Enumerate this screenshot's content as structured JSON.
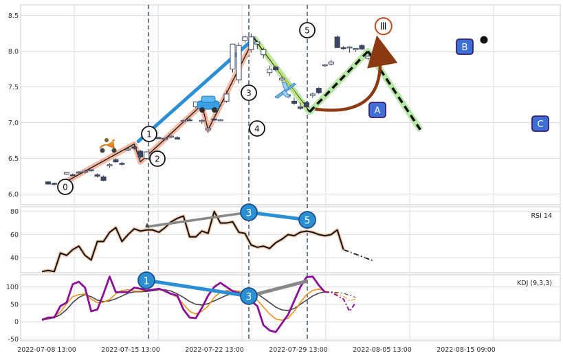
{
  "chart_data": [
    {
      "type": "candlestick",
      "panel": "price",
      "ylim": [
        5.85,
        8.65
      ],
      "y_ticks": [
        6.0,
        6.5,
        7.0,
        7.5,
        8.0,
        8.5
      ],
      "x_tick_labels": [
        "2022-07-08 13:00",
        "2022-07-15 13:00",
        "2022-07-22 13:00",
        "2022-07-29 13:00",
        "2022-08-05 13:00",
        "2022-08-15 09:00"
      ],
      "grid": true,
      "candles_ohlc": [
        [
          6.17,
          6.18,
          6.13,
          6.14
        ],
        [
          6.15,
          6.16,
          6.12,
          6.14
        ],
        [
          6.14,
          6.16,
          6.11,
          6.12
        ],
        [
          6.28,
          6.31,
          6.27,
          6.3
        ],
        [
          6.27,
          6.29,
          6.25,
          6.26
        ],
        [
          6.3,
          6.32,
          6.28,
          6.31
        ],
        [
          6.31,
          6.34,
          6.29,
          6.32
        ],
        [
          6.33,
          6.35,
          6.31,
          6.34
        ],
        [
          6.27,
          6.29,
          6.23,
          6.25
        ],
        [
          6.24,
          6.26,
          6.18,
          6.19
        ],
        [
          6.4,
          6.43,
          6.37,
          6.41
        ],
        [
          6.48,
          6.5,
          6.44,
          6.45
        ],
        [
          6.43,
          6.45,
          6.4,
          6.42
        ],
        [
          6.62,
          6.65,
          6.6,
          6.63
        ],
        [
          6.66,
          6.7,
          6.62,
          6.64
        ],
        [
          6.6,
          6.62,
          6.5,
          6.52
        ],
        [
          6.5,
          6.6,
          6.48,
          6.59
        ],
        [
          6.79,
          6.81,
          6.77,
          6.8
        ],
        [
          6.79,
          6.8,
          6.77,
          6.78
        ],
        [
          6.77,
          6.79,
          6.75,
          6.78
        ],
        [
          6.8,
          6.82,
          6.78,
          6.81
        ],
        [
          6.79,
          6.81,
          6.76,
          6.77
        ],
        [
          7.02,
          7.04,
          7.0,
          7.03
        ],
        [
          7.04,
          7.06,
          7.02,
          7.03
        ],
        [
          7.22,
          7.3,
          7.2,
          7.29
        ],
        [
          7.02,
          7.05,
          6.98,
          7.03
        ],
        [
          6.9,
          6.93,
          6.86,
          6.92
        ],
        [
          7.05,
          7.07,
          7.03,
          7.04
        ],
        [
          7.03,
          7.05,
          7.02,
          7.04
        ],
        [
          7.3,
          7.45,
          7.28,
          7.4
        ],
        [
          7.75,
          8.1,
          7.7,
          8.1
        ],
        [
          7.6,
          8.12,
          7.55,
          8.08
        ],
        [
          8.15,
          8.22,
          8.12,
          8.2
        ],
        [
          8.02,
          8.25,
          7.98,
          8.2
        ],
        [
          8.1,
          8.15,
          8.03,
          8.13
        ],
        [
          7.95,
          8.05,
          7.9,
          8.02
        ],
        [
          7.7,
          7.8,
          7.65,
          7.75
        ],
        [
          7.78,
          7.8,
          7.72,
          7.74
        ],
        [
          7.6,
          7.65,
          7.58,
          7.62
        ],
        [
          7.38,
          7.4,
          7.35,
          7.39
        ],
        [
          7.3,
          7.35,
          7.25,
          7.27
        ],
        [
          7.22,
          7.28,
          7.18,
          7.2
        ],
        [
          7.28,
          7.3,
          7.2,
          7.22
        ],
        [
          7.38,
          7.42,
          7.35,
          7.4
        ],
        [
          7.48,
          7.5,
          7.4,
          7.42
        ],
        [
          7.8,
          7.82,
          7.78,
          7.81
        ],
        [
          7.82,
          7.88,
          7.8,
          7.85
        ],
        [
          8.2,
          8.22,
          8.05,
          8.05
        ],
        [
          8.05,
          8.07,
          8.02,
          8.04
        ],
        [
          8.05,
          8.07,
          7.98,
          8.06
        ],
        [
          8.02,
          8.04,
          7.99,
          8.04
        ],
        [
          8.08,
          8.1,
          8.02,
          8.03
        ],
        [
          7.9,
          7.95,
          7.87,
          7.93
        ],
        [
          7.88,
          7.9,
          7.85,
          7.87
        ],
        [
          7.88,
          8.1,
          7.85,
          8.1
        ]
      ],
      "annotations": {
        "wave_points": [
          {
            "label": "0",
            "index": 2.0,
            "price": 6.13
          },
          {
            "label": "1",
            "index": 14.0,
            "price": 6.7
          },
          {
            "label": "2",
            "index": 15.0,
            "price": 6.45
          },
          {
            "label": "3",
            "index": 25.0,
            "price": 7.25
          },
          {
            "label": "4",
            "index": 26.0,
            "price": 6.9
          },
          {
            "label": "5",
            "index": 33.5,
            "price": 8.18
          },
          {
            "label": "A",
            "index": 42.5,
            "price": 7.15
          },
          {
            "label": "B",
            "index": 52.0,
            "price": 8.0
          },
          {
            "label": "C",
            "index": 60.5,
            "price": 6.9
          },
          {
            "label": "III",
            "index": 54.5,
            "price": 8.35
          }
        ]
      }
    },
    {
      "type": "line",
      "panel": "rsi",
      "label": "RSI 14",
      "ylim": [
        27,
        84
      ],
      "y_ticks": [
        40,
        60,
        80
      ],
      "series": [
        {
          "values": [
            28,
            29,
            28,
            44,
            42,
            47,
            50,
            42,
            38,
            54,
            54,
            62,
            66,
            54,
            60,
            65,
            63,
            64,
            64,
            62,
            66,
            71,
            74,
            76,
            58,
            58,
            63,
            61,
            80,
            70,
            70,
            71,
            62,
            61,
            51,
            49,
            50,
            48,
            53,
            56,
            60,
            59,
            62,
            63,
            62,
            60,
            59,
            60,
            64,
            47,
            45,
            43,
            41,
            39,
            37
          ],
          "name": ""
        }
      ],
      "annotations": {
        "labels": [
          "3",
          "5"
        ]
      }
    },
    {
      "type": "line",
      "panel": "kdj",
      "label": "KDJ (9,3,3)",
      "ylim": [
        -55,
        135
      ],
      "y_ticks": [
        -50,
        0,
        50,
        100
      ],
      "series": [
        {
          "name": "",
          "values": [
            5,
            8,
            12,
            20,
            35,
            55,
            70,
            78,
            72,
            62,
            58,
            60,
            66,
            74,
            82,
            86,
            86,
            87,
            89,
            92,
            92,
            88,
            80,
            70,
            58,
            50,
            48,
            52,
            60,
            68,
            76,
            82,
            86,
            88,
            86,
            80,
            68,
            55,
            42,
            34,
            32,
            38,
            50,
            62,
            74,
            82,
            86,
            86,
            84,
            82,
            76,
            70
          ]
        },
        {
          "name": "",
          "values": [
            8,
            10,
            15,
            28,
            52,
            72,
            78,
            80,
            65,
            55,
            56,
            64,
            80,
            90,
            92,
            88,
            88,
            90,
            92,
            95,
            90,
            80,
            70,
            50,
            30,
            22,
            30,
            45,
            70,
            85,
            90,
            90,
            88,
            84,
            76,
            62,
            42,
            22,
            8,
            4,
            10,
            30,
            55,
            78,
            90,
            94,
            88,
            86,
            80,
            74,
            60,
            65
          ]
        },
        {
          "name": "",
          "values": [
            5,
            12,
            12,
            45,
            55,
            108,
            115,
            98,
            30,
            35,
            80,
            130,
            85,
            85,
            85,
            98,
            95,
            90,
            92,
            95,
            88,
            80,
            75,
            35,
            12,
            10,
            40,
            75,
            100,
            112,
            100,
            88,
            82,
            74,
            60,
            45,
            -10,
            -25,
            -30,
            -5,
            20,
            60,
            100,
            128,
            130,
            105,
            85,
            85,
            75,
            65,
            30,
            55
          ]
        }
      ],
      "annotations": {
        "labels": [
          "1",
          "3"
        ]
      }
    }
  ]
}
